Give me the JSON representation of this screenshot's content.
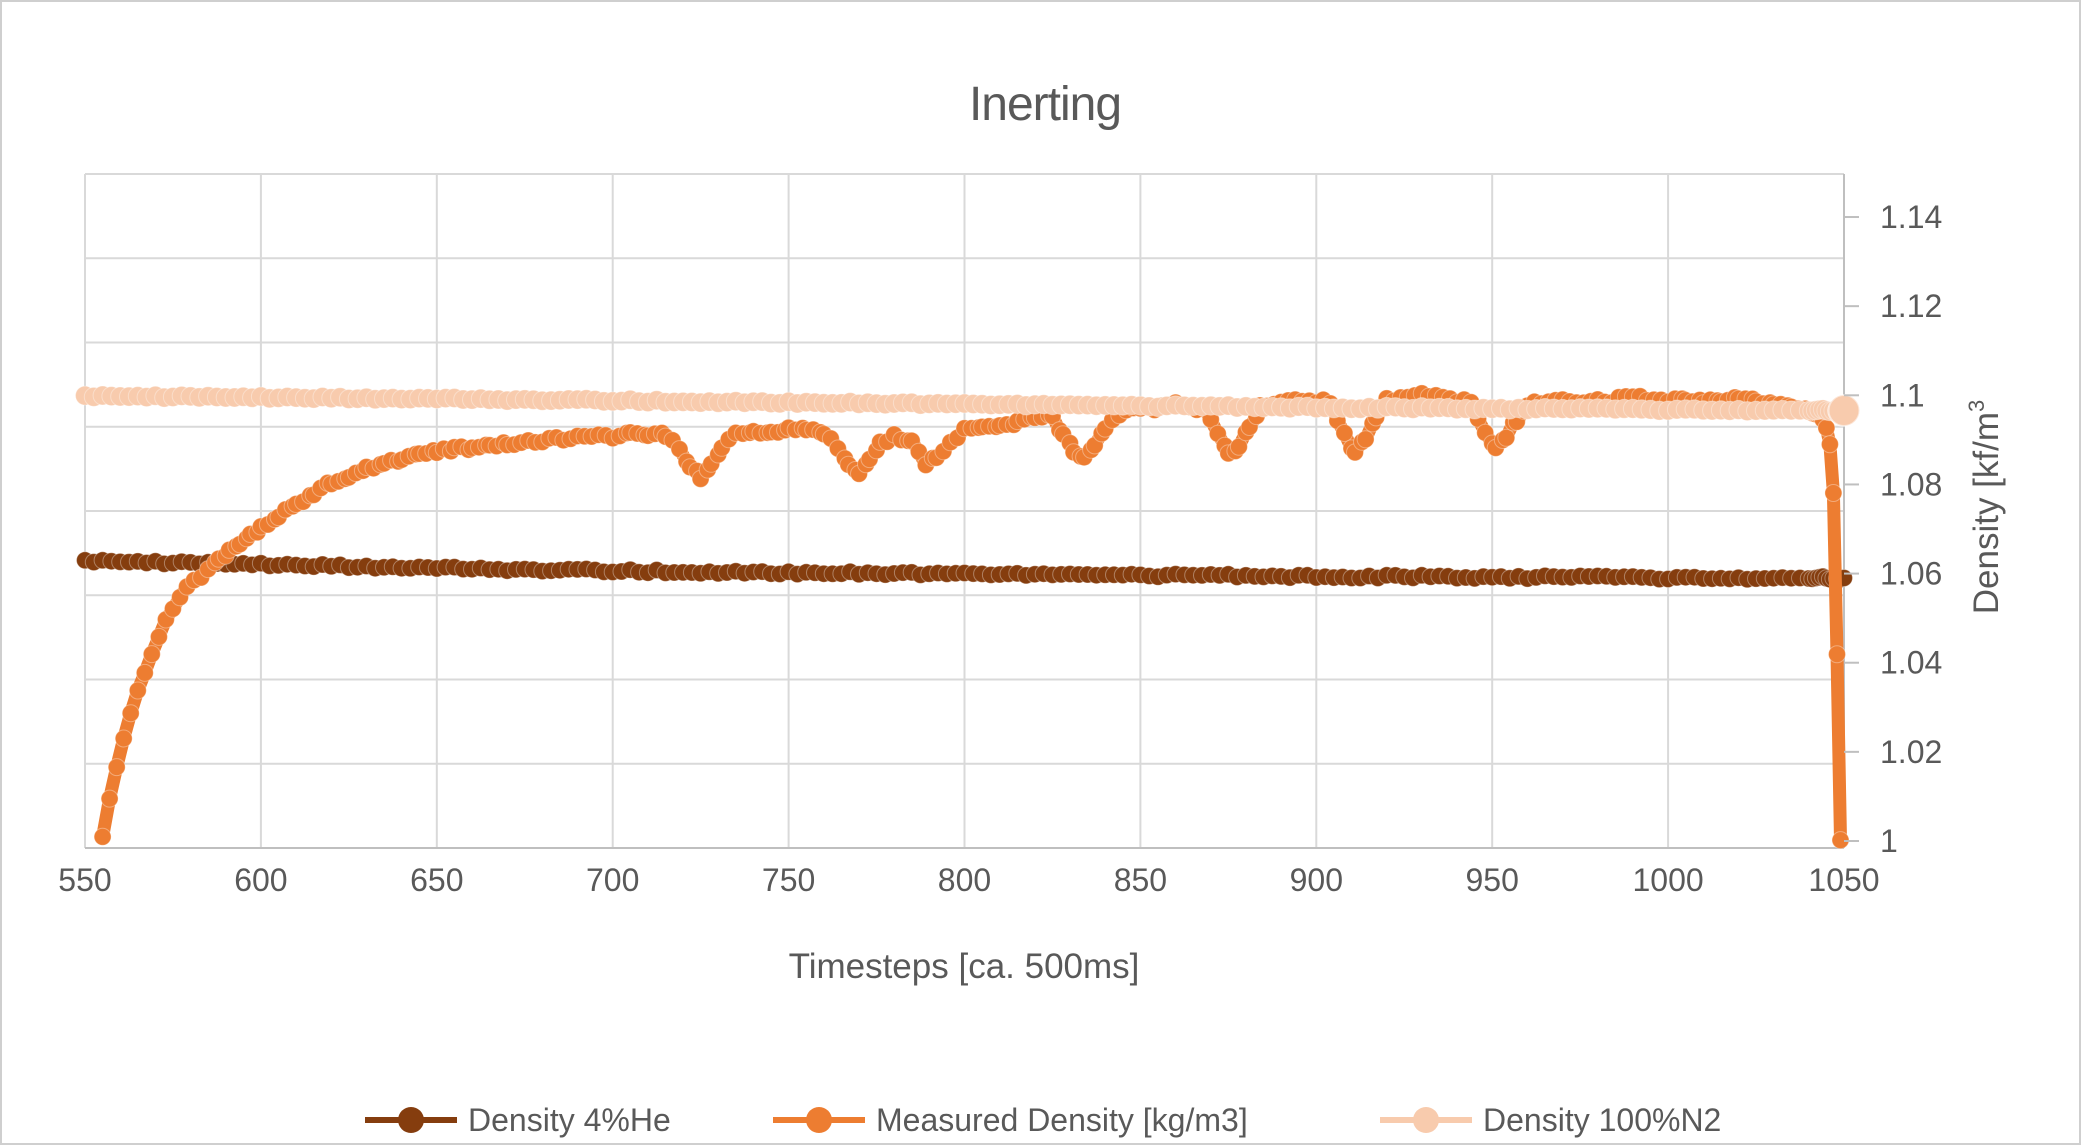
{
  "chart": {
    "title": "Inerting",
    "x_axis": {
      "title": "Timesteps [ca. 500ms]",
      "tick_labels": [
        "550",
        "600",
        "650",
        "700",
        "750",
        "800",
        "850",
        "900",
        "950",
        "1000",
        "1050"
      ]
    },
    "y_axis": {
      "title_prefix": "Density [kf/m",
      "title_superscript": "3",
      "side": "right",
      "tick_labels": [
        "1",
        "1.02",
        "1.04",
        "1.06",
        "1.08",
        "1.1",
        "1.12",
        "1.14"
      ]
    },
    "colors": {
      "text": "#595959",
      "gridline": "#d9d9d9",
      "axis_line": "#bfbfbf",
      "background": "#ffffff"
    }
  },
  "chart_data": {
    "type": "scatter",
    "title": "Inerting",
    "xlabel": "Timesteps [ca. 500ms]",
    "ylabel": "Density [kf/m³",
    "x_range": [
      550,
      1050
    ],
    "y_range_labeled": [
      1,
      1.14
    ],
    "x_ticks": [
      550,
      600,
      650,
      700,
      750,
      800,
      850,
      900,
      950,
      1000,
      1050
    ],
    "y_ticks": [
      1,
      1.02,
      1.04,
      1.06,
      1.08,
      1.1,
      1.12,
      1.14
    ],
    "grid": true,
    "legend_position": "bottom",
    "series": [
      {
        "name": "Density 4%He",
        "color": "#853D0E",
        "points": [
          [
            550,
            1.0628
          ],
          [
            600,
            1.062
          ],
          [
            650,
            1.0612
          ],
          [
            700,
            1.0606
          ],
          [
            750,
            1.0602
          ],
          [
            800,
            1.0599
          ],
          [
            850,
            1.0596
          ],
          [
            900,
            1.0594
          ],
          [
            950,
            1.0592
          ],
          [
            1000,
            1.0591
          ],
          [
            1050,
            1.059
          ]
        ]
      },
      {
        "name": "Measured Density [kg/m3]",
        "color": "#ED7D31",
        "points": [
          [
            555,
            1.0005
          ],
          [
            557,
            1.009
          ],
          [
            559,
            1.0165
          ],
          [
            561,
            1.023
          ],
          [
            563,
            1.0285
          ],
          [
            565,
            1.0335
          ],
          [
            567,
            1.038
          ],
          [
            569,
            1.0422
          ],
          [
            571,
            1.046
          ],
          [
            573,
            1.0495
          ],
          [
            575,
            1.0522
          ],
          [
            577,
            1.0545
          ],
          [
            579,
            1.0565
          ],
          [
            581,
            1.0585
          ],
          [
            583,
            1.059
          ],
          [
            585,
            1.0605
          ],
          [
            588,
            1.0628
          ],
          [
            591,
            1.0648
          ],
          [
            594,
            1.0666
          ],
          [
            597,
            1.0684
          ],
          [
            600,
            1.07
          ],
          [
            605,
            1.0728
          ],
          [
            610,
            1.0755
          ],
          [
            615,
            1.078
          ],
          [
            620,
            1.0802
          ],
          [
            625,
            1.082
          ],
          [
            630,
            1.0836
          ],
          [
            635,
            1.0848
          ],
          [
            640,
            1.0858
          ],
          [
            645,
            1.0866
          ],
          [
            650,
            1.0872
          ],
          [
            655,
            1.0878
          ],
          [
            660,
            1.0884
          ],
          [
            665,
            1.089
          ],
          [
            670,
            1.0894
          ],
          [
            680,
            1.09
          ],
          [
            690,
            1.0905
          ],
          [
            700,
            1.0908
          ],
          [
            705,
            1.0911
          ],
          [
            710,
            1.0915
          ],
          [
            715,
            1.0913
          ],
          [
            719,
            1.0878
          ],
          [
            722,
            1.0842
          ],
          [
            725,
            1.0818
          ],
          [
            728,
            1.0846
          ],
          [
            731,
            1.0886
          ],
          [
            735,
            1.0912
          ],
          [
            740,
            1.0918
          ],
          [
            745,
            1.0922
          ],
          [
            750,
            1.0924
          ],
          [
            755,
            1.092
          ],
          [
            760,
            1.0916
          ],
          [
            764,
            1.0878
          ],
          [
            767,
            1.0846
          ],
          [
            770,
            1.0828
          ],
          [
            773,
            1.0854
          ],
          [
            776,
            1.089
          ],
          [
            780,
            1.0912
          ],
          [
            785,
            1.0893
          ],
          [
            789,
            1.0846
          ],
          [
            792,
            1.0864
          ],
          [
            796,
            1.0896
          ],
          [
            800,
            1.0922
          ],
          [
            805,
            1.0928
          ],
          [
            810,
            1.0933
          ],
          [
            815,
            1.0938
          ],
          [
            820,
            1.0948
          ],
          [
            825,
            1.0954
          ],
          [
            828,
            1.0912
          ],
          [
            831,
            1.0878
          ],
          [
            834,
            1.0862
          ],
          [
            837,
            1.089
          ],
          [
            840,
            1.0924
          ],
          [
            844,
            1.0958
          ],
          [
            848,
            1.0967
          ],
          [
            852,
            1.0971
          ],
          [
            856,
            1.0974
          ],
          [
            860,
            1.0978
          ],
          [
            864,
            1.0974
          ],
          [
            868,
            1.0966
          ],
          [
            872,
            1.0916
          ],
          [
            875,
            1.0864
          ],
          [
            878,
            1.0886
          ],
          [
            881,
            1.093
          ],
          [
            884,
            1.0972
          ],
          [
            888,
            1.0984
          ],
          [
            892,
            1.0988
          ],
          [
            896,
            1.0992
          ],
          [
            900,
            1.0988
          ],
          [
            904,
            1.0982
          ],
          [
            908,
            1.0912
          ],
          [
            911,
            1.0874
          ],
          [
            914,
            1.0902
          ],
          [
            917,
            1.0948
          ],
          [
            920,
            1.0988
          ],
          [
            924,
            1.0996
          ],
          [
            928,
            1.0999
          ],
          [
            932,
            1.0998
          ],
          [
            936,
            1.0994
          ],
          [
            940,
            1.0989
          ],
          [
            944,
            1.0984
          ],
          [
            948,
            1.0912
          ],
          [
            951,
            1.0882
          ],
          [
            954,
            1.0908
          ],
          [
            957,
            1.0946
          ],
          [
            960,
            1.0982
          ],
          [
            964,
            1.0987
          ],
          [
            968,
            1.0989
          ],
          [
            972,
            1.099
          ],
          [
            976,
            1.0987
          ],
          [
            980,
            1.0985
          ],
          [
            984,
            1.0988
          ],
          [
            988,
            1.0992
          ],
          [
            992,
            1.0994
          ],
          [
            996,
            1.0994
          ],
          [
            1000,
            1.0991
          ],
          [
            1005,
            1.0987
          ],
          [
            1010,
            1.0985
          ],
          [
            1015,
            1.0988
          ],
          [
            1020,
            1.0992
          ],
          [
            1025,
            1.0989
          ],
          [
            1030,
            1.0981
          ],
          [
            1035,
            1.0975
          ],
          [
            1040,
            1.0969
          ],
          [
            1043,
            1.0952
          ],
          [
            1045,
            1.0928
          ],
          [
            1046,
            1.0895
          ],
          [
            1047,
            1.0782
          ],
          [
            1048,
            1.0421
          ],
          [
            1049,
            1.0002
          ]
        ]
      },
      {
        "name": "Density 100%N2",
        "color": "#F8CBAD",
        "end_marker_emphasis": true,
        "points": [
          [
            550,
            1.0998
          ],
          [
            600,
            1.0995
          ],
          [
            650,
            1.0992
          ],
          [
            700,
            1.0988
          ],
          [
            750,
            1.0984
          ],
          [
            800,
            1.098
          ],
          [
            850,
            1.0976
          ],
          [
            900,
            1.0973
          ],
          [
            950,
            1.097
          ],
          [
            1000,
            1.0968
          ],
          [
            1050,
            1.0966
          ]
        ]
      }
    ]
  }
}
